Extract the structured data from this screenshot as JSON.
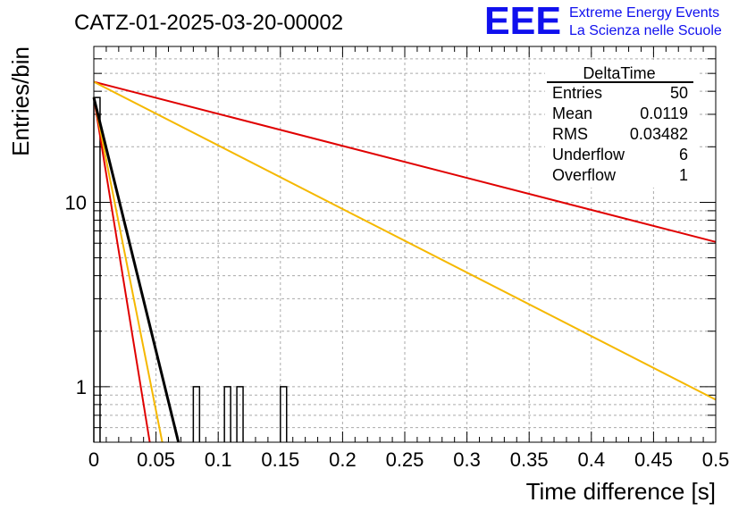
{
  "header": {
    "title": "CATZ-01-2025-03-20-00002",
    "logo_text": "EEE",
    "logo_line1": "Extreme Energy Events",
    "logo_line2": "La Scienza nelle Scuole"
  },
  "colors": {
    "logo": "#1010ee",
    "hist": "#000000",
    "fit_red": "#e00000",
    "fit_yellow": "#f5b800",
    "fit_black": "#000000",
    "grid": "#aaaaaa"
  },
  "stats": {
    "title": "DeltaTime",
    "rows": [
      {
        "label": "Entries",
        "value": "50"
      },
      {
        "label": "Mean",
        "value": "0.0119"
      },
      {
        "label": "RMS",
        "value": "0.03482"
      },
      {
        "label": "Underflow",
        "value": "6"
      },
      {
        "label": "Overflow",
        "value": "1"
      }
    ]
  },
  "chart_data": {
    "type": "line",
    "title": "CATZ-01-2025-03-20-00002",
    "xlabel": "Time difference [s]",
    "ylabel": "Entries/bin",
    "xlim": [
      0,
      0.5
    ],
    "ylim": [
      0.5,
      70
    ],
    "y_scale": "log",
    "grid": true,
    "x_ticks": [
      0,
      0.05,
      0.1,
      0.15,
      0.2,
      0.25,
      0.3,
      0.35,
      0.4,
      0.45,
      0.5
    ],
    "x_tick_labels": [
      "0",
      "0.05",
      "0.1",
      "0.15",
      "0.2",
      "0.25",
      "0.3",
      "0.35",
      "0.4",
      "0.45",
      "0.5"
    ],
    "y_ticks": [
      1,
      10
    ],
    "y_tick_labels": [
      "1",
      "10"
    ],
    "histogram": {
      "bin_width": 0.005,
      "bins": [
        {
          "x": 0.0,
          "count": 37
        },
        {
          "x": 0.08,
          "count": 1
        },
        {
          "x": 0.105,
          "count": 1
        },
        {
          "x": 0.115,
          "count": 1
        },
        {
          "x": 0.15,
          "count": 1
        }
      ]
    },
    "series": [
      {
        "color": "#e00000",
        "x": [
          0,
          0.5
        ],
        "y": [
          45,
          6.1
        ]
      },
      {
        "color": "#f5b800",
        "x": [
          0,
          0.5
        ],
        "y": [
          45,
          0.85
        ]
      },
      {
        "color": "#e00000",
        "x": [
          0,
          0.045
        ],
        "y": [
          37,
          0.5
        ]
      },
      {
        "color": "#f5b800",
        "x": [
          0,
          0.055
        ],
        "y": [
          37,
          0.5
        ]
      },
      {
        "color": "#000000",
        "x": [
          0,
          0.068
        ],
        "y": [
          37,
          0.5
        ]
      }
    ]
  }
}
